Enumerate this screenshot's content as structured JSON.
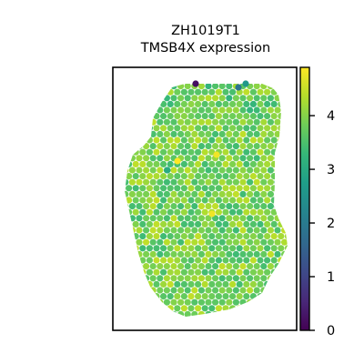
{
  "chart_data": {
    "type": "spatial-heatmap",
    "title": "ZH1019T1",
    "subtitle": "TMSB4X expression",
    "colorbar": {
      "colormap": "viridis",
      "range": [
        0,
        4.9
      ],
      "ticks": [
        0,
        1,
        2,
        3,
        4
      ],
      "tick_labels": [
        "0",
        "1",
        "2",
        "3",
        "4"
      ]
    },
    "expression_summary": {
      "typical_level": 3.9,
      "typical_range": [
        3.4,
        4.5
      ],
      "max": 4.9,
      "min": 0
    },
    "notable_spots": [
      {
        "region": "top edge",
        "value": 0.2
      },
      {
        "region": "top edge",
        "value": 1.9
      },
      {
        "region": "top edge",
        "value": 2.6
      },
      {
        "region": "upper-left interior",
        "value": 4.9
      },
      {
        "region": "upper interior",
        "value": 4.8
      },
      {
        "region": "center",
        "value": 4.8
      },
      {
        "region": "left-center",
        "value": 3.0
      }
    ],
    "axes_visible": false,
    "grid": false,
    "colors": {
      "viridis_stops": [
        "#440154",
        "#482878",
        "#3e4989",
        "#31688e",
        "#26828e",
        "#1f9e89",
        "#35b779",
        "#6ece58",
        "#b5de2b",
        "#fde725"
      ]
    }
  }
}
